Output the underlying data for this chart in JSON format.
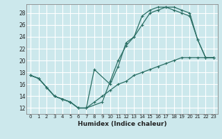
{
  "xlabel": "Humidex (Indice chaleur)",
  "bg_color": "#cce8ec",
  "grid_color": "#ffffff",
  "line_color": "#2a6e64",
  "xlim": [
    -0.5,
    23.5
  ],
  "ylim": [
    11.0,
    29.5
  ],
  "xticks": [
    0,
    1,
    2,
    3,
    4,
    5,
    6,
    7,
    8,
    9,
    10,
    11,
    12,
    13,
    14,
    15,
    16,
    17,
    18,
    19,
    20,
    21,
    22,
    23
  ],
  "yticks": [
    12,
    14,
    16,
    18,
    20,
    22,
    24,
    26,
    28
  ],
  "line1_x": [
    0,
    1,
    2,
    3,
    4,
    5,
    6,
    7,
    8,
    10,
    11,
    12,
    13,
    14,
    15,
    16,
    17,
    18,
    19,
    20,
    21,
    22,
    23
  ],
  "line1_y": [
    17.5,
    17.0,
    15.5,
    14.0,
    13.5,
    13.0,
    12.0,
    12.0,
    18.5,
    16.0,
    19.0,
    23.0,
    24.0,
    26.0,
    28.0,
    28.5,
    29.0,
    29.0,
    28.5,
    28.0,
    23.5,
    20.5,
    20.5
  ],
  "line2_x": [
    0,
    1,
    2,
    3,
    4,
    5,
    6,
    7,
    9,
    10,
    11,
    12,
    13,
    14,
    15,
    16,
    17,
    18,
    19,
    20,
    21,
    22,
    23
  ],
  "line2_y": [
    17.5,
    17.0,
    15.5,
    14.0,
    13.5,
    13.0,
    12.0,
    12.0,
    13.0,
    16.5,
    20.0,
    22.5,
    24.0,
    27.5,
    28.5,
    29.0,
    29.0,
    28.5,
    28.0,
    27.5,
    23.5,
    20.5,
    20.5
  ],
  "line3_x": [
    0,
    1,
    2,
    3,
    4,
    5,
    6,
    7,
    8,
    9,
    10,
    11,
    12,
    13,
    14,
    15,
    16,
    17,
    18,
    19,
    20,
    21,
    22,
    23
  ],
  "line3_y": [
    17.5,
    17.0,
    15.5,
    14.0,
    13.5,
    13.0,
    12.0,
    12.0,
    13.0,
    14.0,
    15.0,
    16.0,
    16.5,
    17.5,
    18.0,
    18.5,
    19.0,
    19.5,
    20.0,
    20.5,
    20.5,
    20.5,
    20.5,
    20.5
  ]
}
